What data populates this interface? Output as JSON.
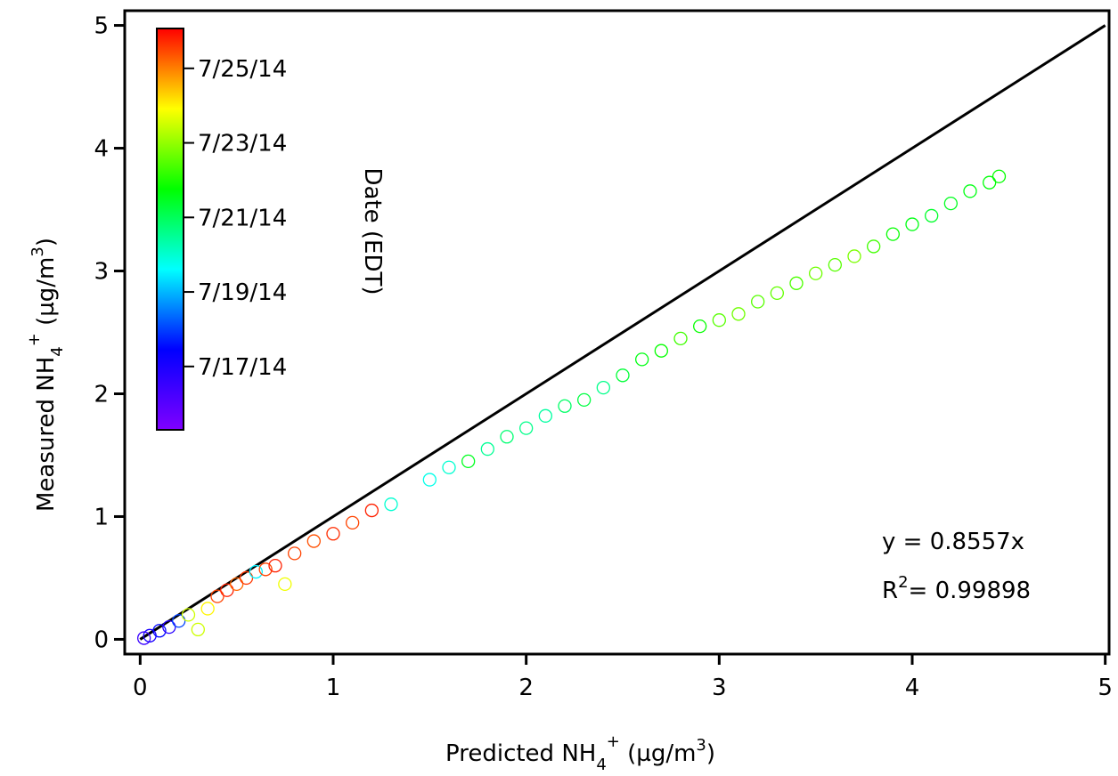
{
  "chart_data": {
    "type": "scatter",
    "xlabel": [
      "Predicted NH",
      "4",
      "+",
      " (µg/m",
      "3",
      ")"
    ],
    "ylabel": [
      "Measured NH",
      "4",
      "+",
      " (µg/m",
      "3",
      ")"
    ],
    "xlim": [
      -0.08,
      5.02
    ],
    "ylim": [
      -0.12,
      5.12
    ],
    "xticks": [
      0,
      1,
      2,
      3,
      4,
      5
    ],
    "yticks": [
      0,
      1,
      2,
      3,
      4,
      5
    ],
    "series": [
      {
        "name": "NH4",
        "x": [
          0.02,
          0.05,
          0.1,
          0.15,
          0.2,
          0.25,
          0.3,
          0.35,
          0.4,
          0.45,
          0.5,
          0.55,
          0.6,
          0.65,
          0.7,
          0.75,
          0.8,
          0.9,
          1.0,
          1.1,
          1.2,
          1.3,
          1.5,
          1.6,
          1.7,
          1.8,
          1.9,
          2.0,
          2.1,
          2.2,
          2.3,
          2.4,
          2.5,
          2.6,
          2.7,
          2.8,
          2.9,
          3.0,
          3.1,
          3.2,
          3.3,
          3.4,
          3.5,
          3.6,
          3.7,
          3.8,
          3.9,
          4.0,
          4.1,
          4.2,
          4.3,
          4.4,
          4.45
        ],
        "values": [
          0.01,
          0.03,
          0.07,
          0.1,
          0.15,
          0.2,
          0.08,
          0.25,
          0.35,
          0.4,
          0.45,
          0.5,
          0.55,
          0.57,
          0.6,
          0.45,
          0.7,
          0.8,
          0.86,
          0.95,
          1.05,
          1.1,
          1.3,
          1.4,
          1.45,
          1.55,
          1.65,
          1.72,
          1.82,
          1.9,
          1.95,
          2.05,
          2.15,
          2.28,
          2.35,
          2.45,
          2.55,
          2.6,
          2.65,
          2.75,
          2.82,
          2.9,
          2.98,
          3.05,
          3.12,
          3.2,
          3.3,
          3.38,
          3.45,
          3.55,
          3.65,
          3.72,
          3.77
        ],
        "dates": [
          16.5,
          17,
          17.5,
          16.8,
          18,
          23.5,
          23.5,
          24,
          25.5,
          25.8,
          25.2,
          25.6,
          19.5,
          25.5,
          25.8,
          23.8,
          25.5,
          25.4,
          25.7,
          25.5,
          25.8,
          20,
          19.8,
          20,
          21.5,
          20.5,
          20.8,
          20.6,
          20.4,
          20.9,
          21.2,
          20.6,
          21.3,
          21.6,
          21.8,
          22.3,
          21.8,
          22.5,
          22.7,
          22.5,
          22.6,
          22.4,
          22.7,
          22.5,
          22.8,
          22.3,
          21.8,
          21.6,
          21.4,
          21.5,
          21.6,
          21.7,
          21.8
        ]
      }
    ],
    "reference_line": {
      "x": [
        0,
        5
      ],
      "y": [
        0,
        5
      ],
      "color": "#000000"
    },
    "colorbar": {
      "label": "Date (EDT)",
      "lim": [
        15.3,
        26.07
      ],
      "colormap": [
        "#8000ff",
        "#0000ff",
        "#00ffff",
        "#00ff00",
        "#ffff00",
        "#ff0000"
      ],
      "ticks": [
        {
          "value": 17,
          "label": "7/17/14"
        },
        {
          "value": 19,
          "label": "7/19/14"
        },
        {
          "value": 21,
          "label": "7/21/14"
        },
        {
          "value": 23,
          "label": "7/23/14"
        },
        {
          "value": 25,
          "label": "7/25/14"
        }
      ]
    },
    "annotations": [
      [
        "y = 0.8557x"
      ],
      [
        "R",
        "2",
        "= 0.99898"
      ]
    ]
  }
}
